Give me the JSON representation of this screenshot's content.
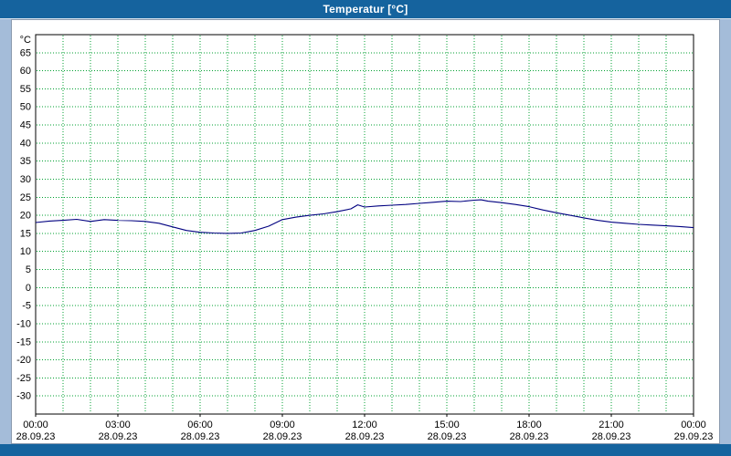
{
  "window": {
    "title": "Temperatur [°C]"
  },
  "colors": {
    "page_background": "#a4bcd9",
    "titlebar": "#15639e",
    "titlebar_text": "#ffffff",
    "plot_background": "#ffffff",
    "grid": "#00a030",
    "axis": "#000000",
    "line": "#000080"
  },
  "chart_data": {
    "type": "line",
    "title": "Temperatur [°C]",
    "xlabel": "",
    "ylabel": "°C",
    "ylim": [
      -35,
      70
    ],
    "xlim": [
      0,
      24
    ],
    "grid": true,
    "legend_position": "none",
    "x_minor_step_hours": 1,
    "yticks": [
      -30,
      -25,
      -20,
      -15,
      -10,
      -5,
      0,
      5,
      10,
      15,
      20,
      25,
      30,
      35,
      40,
      45,
      50,
      55,
      60,
      65
    ],
    "xticks": [
      {
        "hour": 0,
        "time": "00:00",
        "date": "28.09.23"
      },
      {
        "hour": 3,
        "time": "03:00",
        "date": "28.09.23"
      },
      {
        "hour": 6,
        "time": "06:00",
        "date": "28.09.23"
      },
      {
        "hour": 9,
        "time": "09:00",
        "date": "28.09.23"
      },
      {
        "hour": 12,
        "time": "12:00",
        "date": "28.09.23"
      },
      {
        "hour": 15,
        "time": "15:00",
        "date": "28.09.23"
      },
      {
        "hour": 18,
        "time": "18:00",
        "date": "28.09.23"
      },
      {
        "hour": 21,
        "time": "21:00",
        "date": "28.09.23"
      },
      {
        "hour": 24,
        "time": "00:00",
        "date": "29.09.23"
      }
    ],
    "series": [
      {
        "name": "Temperatur",
        "color": "#000080",
        "x": [
          0,
          0.5,
          1,
          1.5,
          2,
          2.5,
          3,
          3.5,
          4,
          4.5,
          5,
          5.5,
          6,
          6.5,
          7,
          7.5,
          8,
          8.5,
          9,
          9.5,
          10,
          10.5,
          11,
          11.5,
          11.75,
          12,
          12.5,
          13,
          13.5,
          14,
          14.5,
          15,
          15.5,
          16,
          16.25,
          16.5,
          17,
          17.5,
          18,
          18.5,
          19,
          19.5,
          20,
          20.5,
          21,
          21.5,
          22,
          22.5,
          23,
          23.5,
          24
        ],
        "values": [
          18.0,
          18.4,
          18.6,
          18.9,
          18.3,
          18.8,
          18.6,
          18.5,
          18.3,
          17.8,
          16.8,
          15.8,
          15.3,
          15.1,
          15.0,
          15.1,
          15.8,
          17.0,
          18.8,
          19.5,
          20.0,
          20.4,
          21.0,
          21.8,
          22.9,
          22.3,
          22.6,
          22.8,
          23.0,
          23.3,
          23.6,
          23.9,
          23.8,
          24.2,
          24.3,
          23.9,
          23.5,
          23.0,
          22.4,
          21.5,
          20.7,
          20.0,
          19.3,
          18.6,
          18.1,
          17.8,
          17.5,
          17.3,
          17.1,
          16.9,
          16.6
        ]
      }
    ]
  }
}
